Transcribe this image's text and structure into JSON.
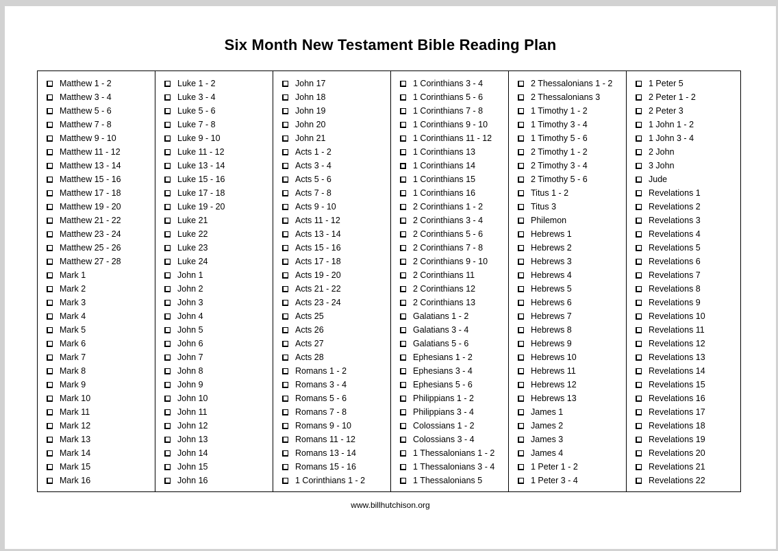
{
  "page": {
    "title": "Six Month New Testament Bible Reading Plan",
    "footer": "www.billhutchison.org"
  },
  "colors": {
    "text": "#000000",
    "table_border": "#000000",
    "page_background": "#ffffff",
    "frame_background": "#d2d2d2"
  },
  "plan": {
    "checkbox_icon": "unchecked-shadowed-square",
    "bold_checkbox_labels": [
      "1 Corinthians 14"
    ],
    "columns": [
      [
        "Matthew 1 - 2",
        "Matthew 3 - 4",
        "Matthew 5 - 6",
        "Matthew 7 - 8",
        "Matthew 9 - 10",
        "Matthew 11 - 12",
        "Matthew 13 - 14",
        "Matthew 15 - 16",
        "Matthew 17 - 18",
        "Matthew 19 - 20",
        "Matthew 21 - 22",
        "Matthew 23 - 24",
        "Matthew 25 - 26",
        "Matthew 27 - 28",
        "Mark 1",
        "Mark 2",
        "Mark 3",
        "Mark 4",
        "Mark 5",
        "Mark 6",
        "Mark 7",
        "Mark 8",
        "Mark 9",
        "Mark 10",
        "Mark 11",
        "Mark 12",
        "Mark 13",
        "Mark 14",
        "Mark 15",
        "Mark 16"
      ],
      [
        "Luke 1 - 2",
        "Luke 3 - 4",
        "Luke 5 - 6",
        "Luke 7 - 8",
        "Luke 9 - 10",
        "Luke 11 - 12",
        "Luke 13 - 14",
        "Luke 15 - 16",
        "Luke 17 - 18",
        "Luke 19 - 20",
        "Luke 21",
        "Luke 22",
        "Luke 23",
        "Luke 24",
        "John 1",
        "John 2",
        "John 3",
        "John 4",
        "John 5",
        "John 6",
        "John 7",
        "John 8",
        "John 9",
        "John 10",
        "John 11",
        "John 12",
        "John 13",
        "John 14",
        "John 15",
        "John 16"
      ],
      [
        "John 17",
        "John 18",
        "John 19",
        "John 20",
        "John 21",
        "Acts 1 - 2",
        "Acts 3 - 4",
        "Acts 5 - 6",
        "Acts 7 - 8",
        "Acts 9 - 10",
        "Acts 11 - 12",
        "Acts 13 - 14",
        "Acts 15 - 16",
        "Acts 17 - 18",
        "Acts 19 - 20",
        "Acts 21 - 22",
        "Acts 23 - 24",
        "Acts 25",
        "Acts 26",
        "Acts 27",
        "Acts 28",
        "Romans 1 - 2",
        "Romans 3 - 4",
        "Romans 5 - 6",
        "Romans 7 - 8",
        "Romans 9 - 10",
        "Romans 11 - 12",
        "Romans 13 - 14",
        "Romans 15 - 16",
        "1 Corinthians 1 - 2"
      ],
      [
        "1 Corinthians 3 - 4",
        "1 Corinthians 5 - 6",
        "1 Corinthians 7 - 8",
        "1 Corinthians 9 - 10",
        "1 Corinthians 11 - 12",
        "1 Corinthians 13",
        "1 Corinthians 14",
        "1 Corinthians 15",
        "1 Corinthians 16",
        "2 Corinthians 1 - 2",
        "2 Corinthians 3 - 4",
        "2 Corinthians 5 - 6",
        "2 Corinthians 7 - 8",
        "2 Corinthians 9 - 10",
        "2 Corinthians 11",
        "2 Corinthians 12",
        "2 Corinthians 13",
        "Galatians 1 - 2",
        "Galatians 3 - 4",
        "Galatians 5 - 6",
        "Ephesians 1 - 2",
        "Ephesians 3 - 4",
        "Ephesians 5 - 6",
        "Philippians 1 - 2",
        "Philippians 3 - 4",
        "Colossians 1 - 2",
        "Colossians 3 - 4",
        "1 Thessalonians 1 - 2",
        "1 Thessalonians 3 - 4",
        "1 Thessalonians 5"
      ],
      [
        "2 Thessalonians 1 - 2",
        "2 Thessalonians 3",
        "1 Timothy 1 - 2",
        "1 Timothy 3 - 4",
        "1 Timothy 5 - 6",
        "2 Timothy 1 - 2",
        "2 Timothy 3 - 4",
        "2 Timothy 5 - 6",
        "Titus 1 - 2",
        "Titus 3",
        "Philemon",
        "Hebrews 1",
        "Hebrews 2",
        "Hebrews 3",
        "Hebrews 4",
        "Hebrews 5",
        "Hebrews 6",
        "Hebrews 7",
        "Hebrews 8",
        "Hebrews 9",
        "Hebrews 10",
        "Hebrews 11",
        "Hebrews 12",
        "Hebrews 13",
        "James 1",
        "James 2",
        "James 3",
        "James 4",
        "1 Peter 1 - 2",
        "1 Peter 3 - 4"
      ],
      [
        "1 Peter 5",
        "2 Peter 1 - 2",
        "2 Peter 3",
        "1 John 1 - 2",
        "1 John 3 - 4",
        "2 John",
        "3 John",
        "Jude",
        "Revelations 1",
        "Revelations 2",
        "Revelations 3",
        "Revelations 4",
        "Revelations 5",
        "Revelations 6",
        "Revelations 7",
        "Revelations 8",
        "Revelations 9",
        "Revelations 10",
        "Revelations 11",
        "Revelations 12",
        "Revelations 13",
        "Revelations 14",
        "Revelations 15",
        "Revelations 16",
        "Revelations 17",
        "Revelations 18",
        "Revelations 19",
        "Revelations 20",
        "Revelations 21",
        "Revelations 22"
      ]
    ]
  }
}
